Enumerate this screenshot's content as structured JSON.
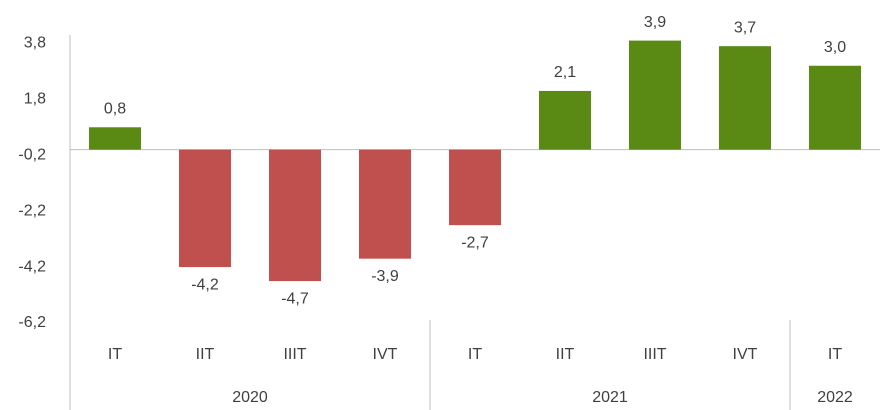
{
  "chart_data": {
    "type": "bar",
    "groups": [
      {
        "name": "2020",
        "categories": [
          "IT",
          "IIT",
          "IIIT",
          "IVT"
        ],
        "values": [
          0.8,
          -4.2,
          -4.7,
          -3.9
        ],
        "value_labels": [
          "0,8",
          "-4,2",
          "-4,7",
          "-3,9"
        ]
      },
      {
        "name": "2021",
        "categories": [
          "IT",
          "IIT",
          "IIIT",
          "IVT"
        ],
        "values": [
          -2.7,
          2.1,
          3.9,
          3.7
        ],
        "value_labels": [
          "-2,7",
          "2,1",
          "3,9",
          "3,7"
        ]
      },
      {
        "name": "2022",
        "categories": [
          "IT"
        ],
        "values": [
          3.0
        ],
        "value_labels": [
          "3,0"
        ]
      }
    ],
    "positive_color": "#5b8a14",
    "negative_color": "#c0504d",
    "ylim": [
      -6.2,
      4.1
    ],
    "yticks": [
      {
        "value": 3.8,
        "label": "3,8"
      },
      {
        "value": 1.8,
        "label": "1,8"
      },
      {
        "value": -0.2,
        "label": "-0,2"
      },
      {
        "value": -2.2,
        "label": "-2,2"
      },
      {
        "value": -4.2,
        "label": "-4,2"
      },
      {
        "value": -6.2,
        "label": "-6,2"
      }
    ],
    "grid": false
  }
}
